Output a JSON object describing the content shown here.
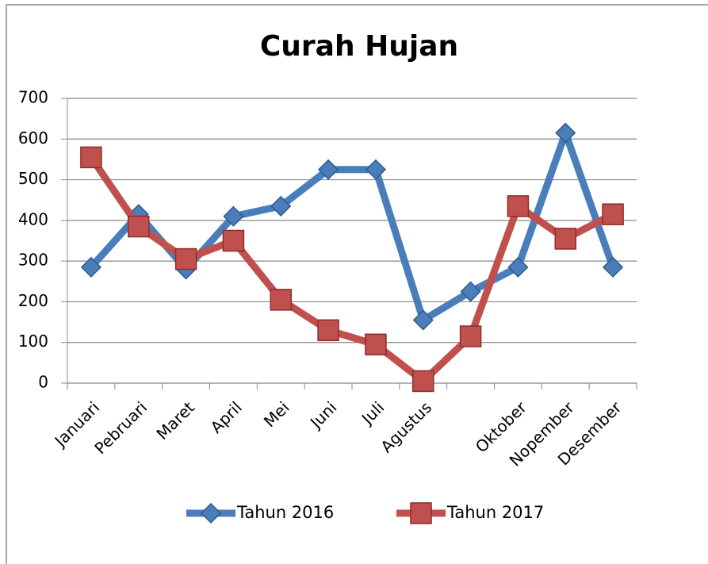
{
  "chart_data": {
    "type": "line",
    "title": "Curah Hujan",
    "categories": [
      "Januari",
      "Pebruari",
      "Maret",
      "April",
      "Mei",
      "Juni",
      "Juli",
      "Agustus",
      null,
      "Oktober",
      "Nopember",
      "Desember"
    ],
    "series": [
      {
        "name": "Tahun 2016",
        "color": "#4a7ebb",
        "marker": "diamond",
        "values": [
          285,
          415,
          280,
          410,
          435,
          525,
          525,
          155,
          225,
          285,
          615,
          285
        ]
      },
      {
        "name": "Tahun 2017",
        "color": "#c0504d",
        "marker": "square",
        "values": [
          555,
          385,
          305,
          350,
          205,
          130,
          95,
          5,
          115,
          435,
          355,
          415
        ]
      }
    ],
    "ylim": [
      0,
      700
    ],
    "yticks": [
      0,
      100,
      200,
      300,
      400,
      500,
      600,
      700
    ],
    "grid": true,
    "legend": "bottom"
  }
}
